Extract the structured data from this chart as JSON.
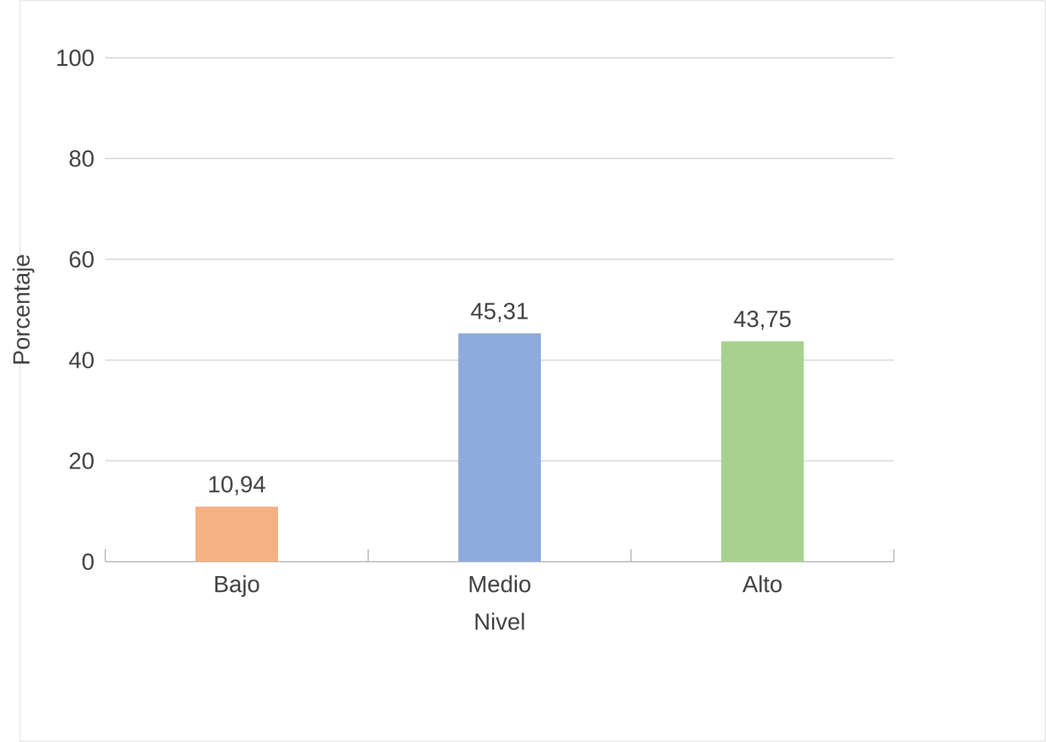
{
  "chart_data": {
    "type": "bar",
    "xlabel": "Nivel",
    "ylabel": "Porcentaje",
    "categories": [
      "Bajo",
      "Medio",
      "Alto"
    ],
    "values": [
      10.94,
      45.31,
      43.75
    ],
    "colors": [
      "#f4b183",
      "#8faadc",
      "#a9d18e"
    ],
    "value_labels": [
      "10,94",
      "45,31",
      "43,75"
    ],
    "ylim": [
      0,
      100
    ],
    "yticks": [
      0,
      20,
      40,
      60,
      80,
      100
    ],
    "grid": "y"
  }
}
